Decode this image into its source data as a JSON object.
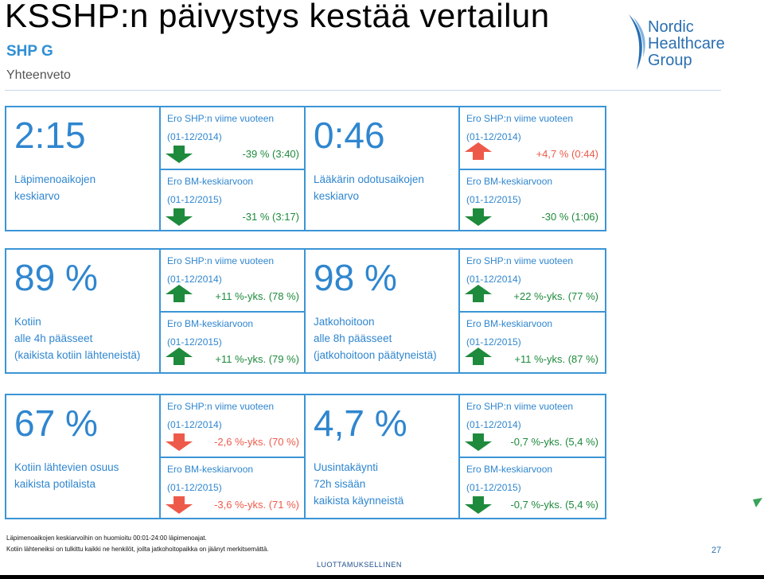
{
  "slide": {
    "title": "KSSHP:n päivystys kestää vertailun",
    "org_name": "SHP G",
    "subtitle": "Yhteenveto",
    "page_number": "27",
    "confidential": "LUOTTAMUKSELLINEN"
  },
  "logo": {
    "line1": "Nordic",
    "line2": "Healthcare",
    "line3": "Group",
    "color": "#2a6fb0"
  },
  "colors": {
    "accent": "#2f86cf",
    "border": "#3b95d6",
    "green": "#1e8a3c",
    "red": "#ee5a4a"
  },
  "cards": [
    {
      "value": "2:15",
      "label_lines": [
        "Läpimenoaikojen",
        "keskiarvo"
      ],
      "comparisons": [
        {
          "title": "Ero SHP:n viime vuoteen",
          "period": "(01-12/2014)",
          "value": "-39 % (3:40)",
          "direction": "down",
          "color": "green-icon"
        },
        {
          "title": "Ero BM-keskiarvoon",
          "period": "(01-12/2015)",
          "value": "-31 % (3:17)",
          "direction": "down",
          "color": "green-icon"
        }
      ]
    },
    {
      "value": "0:46",
      "label_lines": [
        "Lääkärin odotusaikojen",
        "keskiarvo"
      ],
      "comparisons": [
        {
          "title": "Ero SHP:n viime vuoteen",
          "period": "(01-12/2014)",
          "value": "+4,7 % (0:44)",
          "direction": "up",
          "color": "red-icon"
        },
        {
          "title": "Ero BM-keskiarvoon",
          "period": "(01-12/2015)",
          "value": "-30 % (1:06)",
          "direction": "down",
          "color": "green-icon"
        }
      ]
    },
    {
      "value": "89 %",
      "label_lines": [
        "Kotiin",
        "alle 4h päässeet",
        "(kaikista kotiin lähteneistä)"
      ],
      "comparisons": [
        {
          "title": "Ero SHP:n viime vuoteen",
          "period": "(01-12/2014)",
          "value": "+11 %-yks. (78 %)",
          "direction": "up",
          "color": "green-icon"
        },
        {
          "title": "Ero BM-keskiarvoon",
          "period": "(01-12/2015)",
          "value": "+11 %-yks. (79 %)",
          "direction": "up",
          "color": "green-icon"
        }
      ]
    },
    {
      "value": "98 %",
      "label_lines": [
        "Jatkohoitoon",
        "alle 8h päässeet",
        "(jatkohoitoon päätyneistä)"
      ],
      "comparisons": [
        {
          "title": "Ero SHP:n viime vuoteen",
          "period": "(01-12/2014)",
          "value": "+22 %-yks. (77 %)",
          "direction": "up",
          "color": "green-icon"
        },
        {
          "title": "Ero BM-keskiarvoon",
          "period": "(01-12/2015)",
          "value": "+11 %-yks. (87 %)",
          "direction": "up",
          "color": "green-icon"
        }
      ]
    },
    {
      "value": "67 %",
      "label_lines": [
        "Kotiin lähtevien osuus",
        "kaikista potilaista"
      ],
      "comparisons": [
        {
          "title": "Ero SHP:n viime vuoteen",
          "period": "(01-12/2014)",
          "value": "-2,6 %-yks. (70 %)",
          "direction": "down",
          "color": "red-icon"
        },
        {
          "title": "Ero BM-keskiarvoon",
          "period": "(01-12/2015)",
          "value": "-3,6 %-yks. (71 %)",
          "direction": "down",
          "color": "red-icon"
        }
      ]
    },
    {
      "value": "4,7 %",
      "label_lines": [
        "Uusintakäynti",
        "72h sisään",
        "kaikista käynneistä"
      ],
      "comparisons": [
        {
          "title": "Ero SHP:n viime vuoteen",
          "period": "(01-12/2014)",
          "value": "-0,7 %-yks. (5,4 %)",
          "direction": "down",
          "color": "green-icon"
        },
        {
          "title": "Ero BM-keskiarvoon",
          "period": "(01-12/2015)",
          "value": "-0,7 %-yks. (5,4 %)",
          "direction": "down",
          "color": "green-icon"
        }
      ]
    }
  ],
  "footnotes": [
    "Läpimenoaikojen keskiarvoihin on huomioitu 00:01-24:00 läpimenoajat.",
    "Kotiin lähteneiksi on tulkittu kaikki ne henkilöt, joilta jatkohoitopaikka on jäänyt merkitsemättä."
  ]
}
